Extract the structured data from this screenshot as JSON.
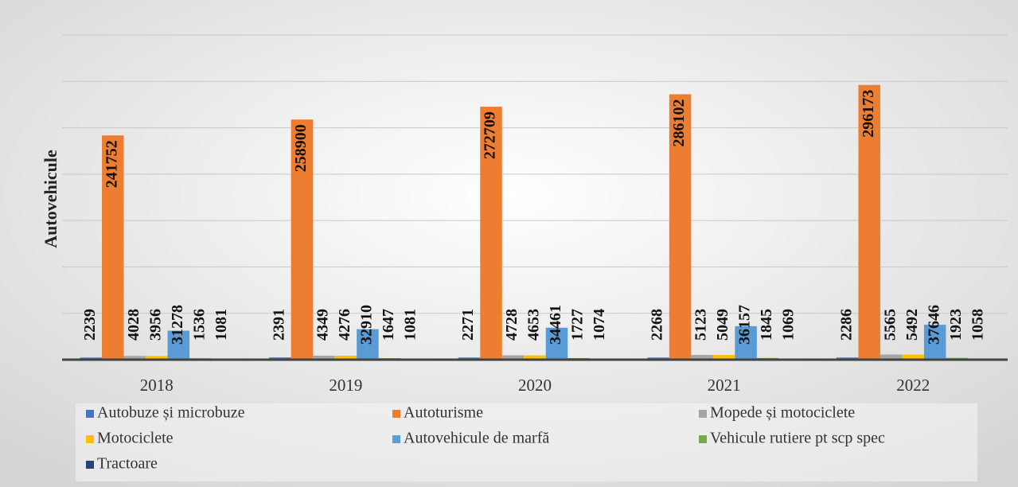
{
  "chart_data": {
    "type": "bar",
    "y_axis_label": "Autovehicule",
    "categories": [
      "2018",
      "2019",
      "2020",
      "2021",
      "2022"
    ],
    "series": [
      {
        "name": "Autobuze și microbuze",
        "color": "#4472c4",
        "values": [
          2239,
          2391,
          2271,
          2268,
          2286
        ]
      },
      {
        "name": "Autoturisme",
        "color": "#ed7d31",
        "values": [
          241752,
          258900,
          272709,
          286102,
          296173
        ]
      },
      {
        "name": "Mopede și motociclete",
        "color": "#a5a5a5",
        "values": [
          4028,
          4349,
          4728,
          5123,
          5565
        ]
      },
      {
        "name": "Motociclete",
        "color": "#ffc000",
        "values": [
          3956,
          4276,
          4653,
          5049,
          5492
        ]
      },
      {
        "name": "Autovehicule de marfă",
        "color": "#5b9bd5",
        "values": [
          31278,
          32910,
          34461,
          36157,
          37646
        ]
      },
      {
        "name": "Vehicule rutiere pt scp spec",
        "color": "#70ad47",
        "values": [
          1536,
          1647,
          1727,
          1845,
          1923
        ]
      },
      {
        "name": "Tractoare",
        "color": "#264478",
        "values": [
          1081,
          1081,
          1074,
          1069,
          1058
        ]
      }
    ],
    "ylim": [
      0,
      350000
    ],
    "yticks": [
      0,
      50000,
      100000,
      150000,
      200000,
      250000,
      300000,
      350000
    ],
    "grid": true
  }
}
